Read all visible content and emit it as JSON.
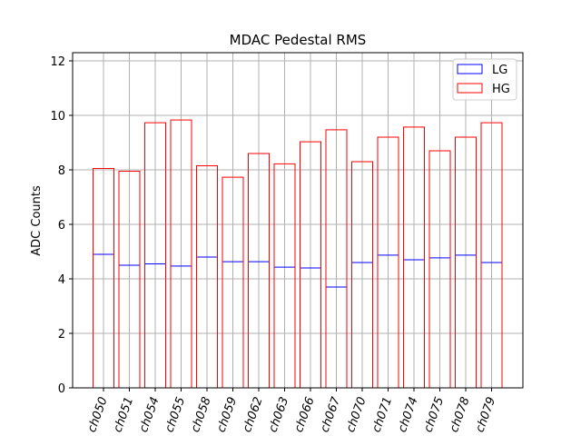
{
  "chart_data": {
    "type": "bar",
    "title": "MDAC Pedestal RMS",
    "xlabel": "",
    "ylabel": "ADC Counts",
    "ylim": [
      0,
      12.3
    ],
    "yticks": [
      0,
      2,
      4,
      6,
      8,
      10,
      12
    ],
    "ytick_labels": [
      "0",
      "2",
      "4",
      "6",
      "8",
      "10",
      "12"
    ],
    "grid": true,
    "legend_position": "top-right",
    "categories": [
      "ch050",
      "ch051",
      "ch054",
      "ch055",
      "ch058",
      "ch059",
      "ch062",
      "ch063",
      "ch066",
      "ch067",
      "ch070",
      "ch071",
      "ch074",
      "ch075",
      "ch078",
      "ch079"
    ],
    "series": [
      {
        "name": "LG",
        "color": "#0000ff",
        "values": [
          4.9,
          4.5,
          4.55,
          4.47,
          4.8,
          4.63,
          4.63,
          4.43,
          4.4,
          3.7,
          4.6,
          4.87,
          4.7,
          4.77,
          4.87,
          4.6
        ]
      },
      {
        "name": "HG",
        "color": "#ff0000",
        "values": [
          8.05,
          7.95,
          9.73,
          9.83,
          8.15,
          7.73,
          8.6,
          8.22,
          9.03,
          9.47,
          8.3,
          9.2,
          9.57,
          8.7,
          9.2,
          9.73
        ]
      }
    ]
  }
}
